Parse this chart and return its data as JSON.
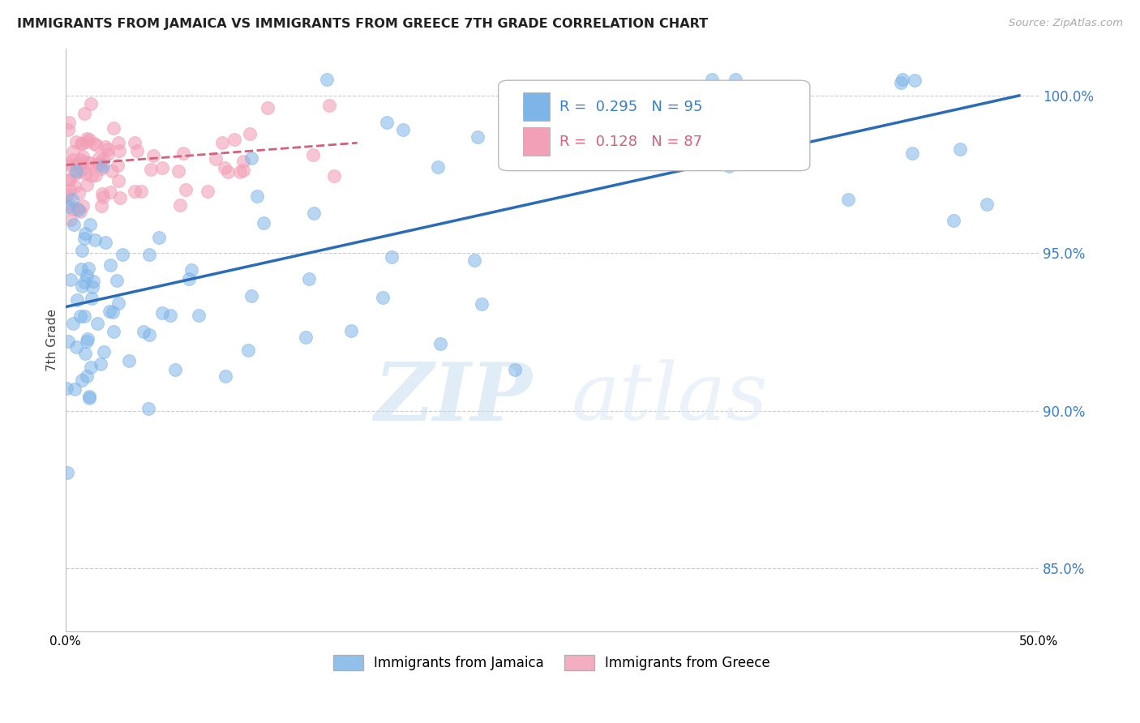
{
  "title": "IMMIGRANTS FROM JAMAICA VS IMMIGRANTS FROM GREECE 7TH GRADE CORRELATION CHART",
  "source": "Source: ZipAtlas.com",
  "ylabel": "7th Grade",
  "yticks": [
    85.0,
    90.0,
    95.0,
    100.0
  ],
  "ytick_labels": [
    "85.0%",
    "90.0%",
    "95.0%",
    "100.0%"
  ],
  "xlim": [
    0.0,
    50.0
  ],
  "ylim": [
    83.0,
    101.5
  ],
  "jamaica_color": "#7EB5E8",
  "greece_color": "#F2A0B8",
  "jamaica_line_color": "#2B6CB8",
  "greece_line_color": "#D4607A",
  "jamaica_R": 0.295,
  "jamaica_N": 95,
  "greece_R": 0.128,
  "greece_N": 87,
  "legend_jamaica": "Immigrants from Jamaica",
  "legend_greece": "Immigrants from Greece",
  "watermark_zip": "ZIP",
  "watermark_atlas": "atlas",
  "jamaica_line_x0": 0.05,
  "jamaica_line_y0": 93.3,
  "jamaica_line_x1": 49.0,
  "jamaica_line_y1": 100.0,
  "greece_line_x0": 0.05,
  "greece_line_y0": 97.8,
  "greece_line_x1": 15.0,
  "greece_line_y1": 98.5
}
